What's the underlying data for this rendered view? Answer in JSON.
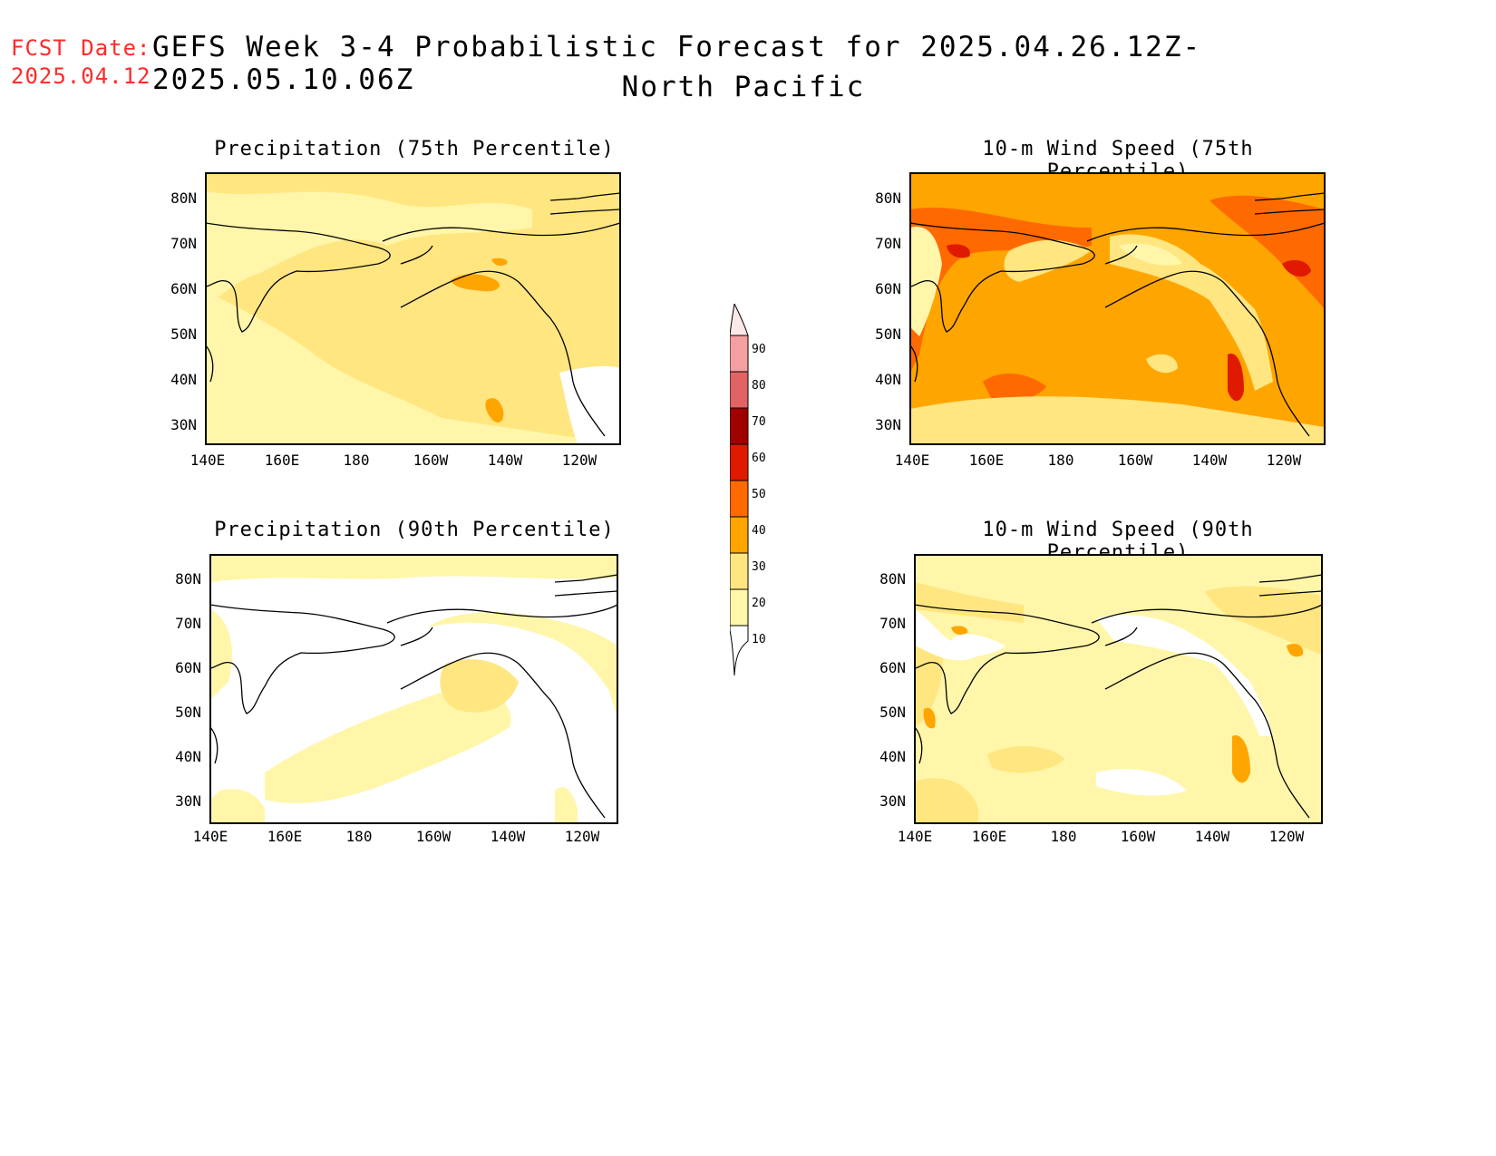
{
  "fcst": {
    "label": "FCST Date:",
    "date": "2025.04.12"
  },
  "title": {
    "main": "GEFS Week 3-4 Probabilistic Forecast for 2025.04.26.12Z-2025.05.10.06Z",
    "region": "North Pacific"
  },
  "colors": {
    "lt10": "#ffffff",
    "c10": "#fff6aa",
    "c20": "#ffe680",
    "c30": "#ffa500",
    "c40": "#ff6a00",
    "c50": "#e01a00",
    "c60": "#a00000",
    "c70": "#e06464",
    "c80": "#f4a0a0",
    "c90": "#fde8e8"
  },
  "colorbar": {
    "levels": [
      "10",
      "20",
      "30",
      "40",
      "50",
      "60",
      "70",
      "80",
      "90"
    ]
  },
  "axes": {
    "lat_labels": [
      "80N",
      "70N",
      "60N",
      "50N",
      "40N",
      "30N"
    ],
    "lon_labels": [
      "140E",
      "160E",
      "180",
      "160W",
      "140W",
      "120W"
    ]
  },
  "panels": [
    {
      "id": "precip75",
      "title": "Precipitation (75th Percentile)",
      "base": "c20"
    },
    {
      "id": "wind75",
      "title": "10-m Wind Speed (75th Percentile)",
      "base": "c30"
    },
    {
      "id": "precip90",
      "title": "Precipitation (90th Percentile)",
      "base": "lt10"
    },
    {
      "id": "wind90",
      "title": "10-m Wind Speed (90th Percentile)",
      "base": "c10"
    }
  ]
}
